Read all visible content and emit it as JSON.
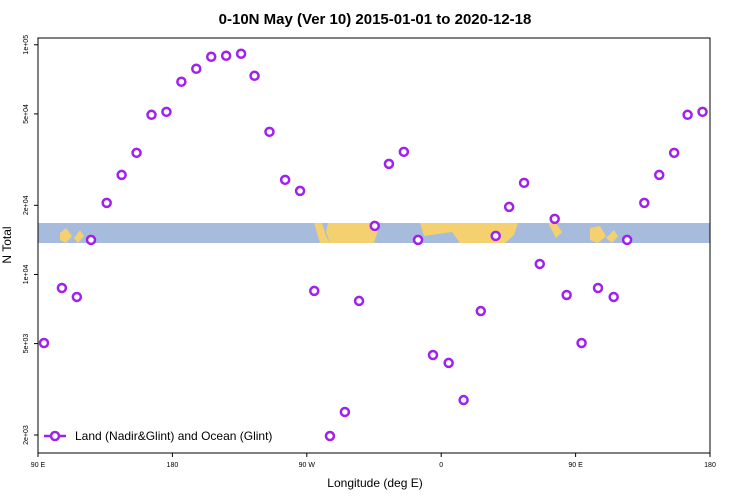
{
  "chart_data": {
    "type": "scatter",
    "title": "0-10N May (Ver 10)   2015-01-01 to 2020-12-18",
    "x_label": "Longitude (deg E)",
    "y_label": "N Total",
    "yscale": "log",
    "legend": "bottom-left",
    "xlim": [
      90,
      540
    ],
    "xticks": [
      {
        "value": 90,
        "label": "90 E"
      },
      180,
      {
        "value": 270,
        "label": "90 W"
      },
      {
        "value": 360,
        "label": "0"
      },
      {
        "value": 450,
        "label": "90 E"
      },
      {
        "value": 540,
        "label": "180"
      }
    ],
    "ylim": [
      1670,
      107000
    ],
    "yticks": [
      {
        "value": 2000,
        "label": "2e+03"
      },
      {
        "value": 5000,
        "label": "5e+03"
      },
      {
        "value": 10000,
        "label": "1e+04"
      },
      {
        "value": 20000,
        "label": "2e+04"
      },
      {
        "value": 50000,
        "label": "5e+04"
      },
      {
        "value": 100000,
        "label": "1e+05"
      }
    ],
    "x": [
      94,
      106,
      116,
      125.5,
      136,
      146,
      156,
      166,
      176,
      186,
      196,
      206,
      216,
      226,
      235,
      245,
      255.5,
      265.5,
      275,
      285.5,
      295.5,
      305,
      315.5,
      325,
      335,
      344.5,
      354.5,
      365,
      375,
      386.5,
      396.5,
      405.5,
      415.5,
      426,
      436,
      444,
      454,
      465,
      475.5,
      484.5,
      496,
      506,
      516,
      525,
      535
    ],
    "series": [
      {
        "name": "Land (Nadir&Glint) and Ocean (Glint)",
        "color": "#a020f0",
        "values": [
          5030,
          8730,
          7980,
          14140,
          20490,
          27120,
          33840,
          49550,
          51040,
          69010,
          78620,
          88650,
          89560,
          91380,
          73270,
          41780,
          25820,
          23110,
          8480,
          1980,
          2520,
          7670,
          16270,
          30300,
          34190,
          14140,
          4460,
          4120,
          2840,
          6930,
          14720,
          19680,
          25050,
          11110,
          17460,
          8140,
          5030,
          8730,
          7980,
          14140,
          20490,
          27120,
          33840,
          49550,
          51040
        ]
      }
    ]
  }
}
